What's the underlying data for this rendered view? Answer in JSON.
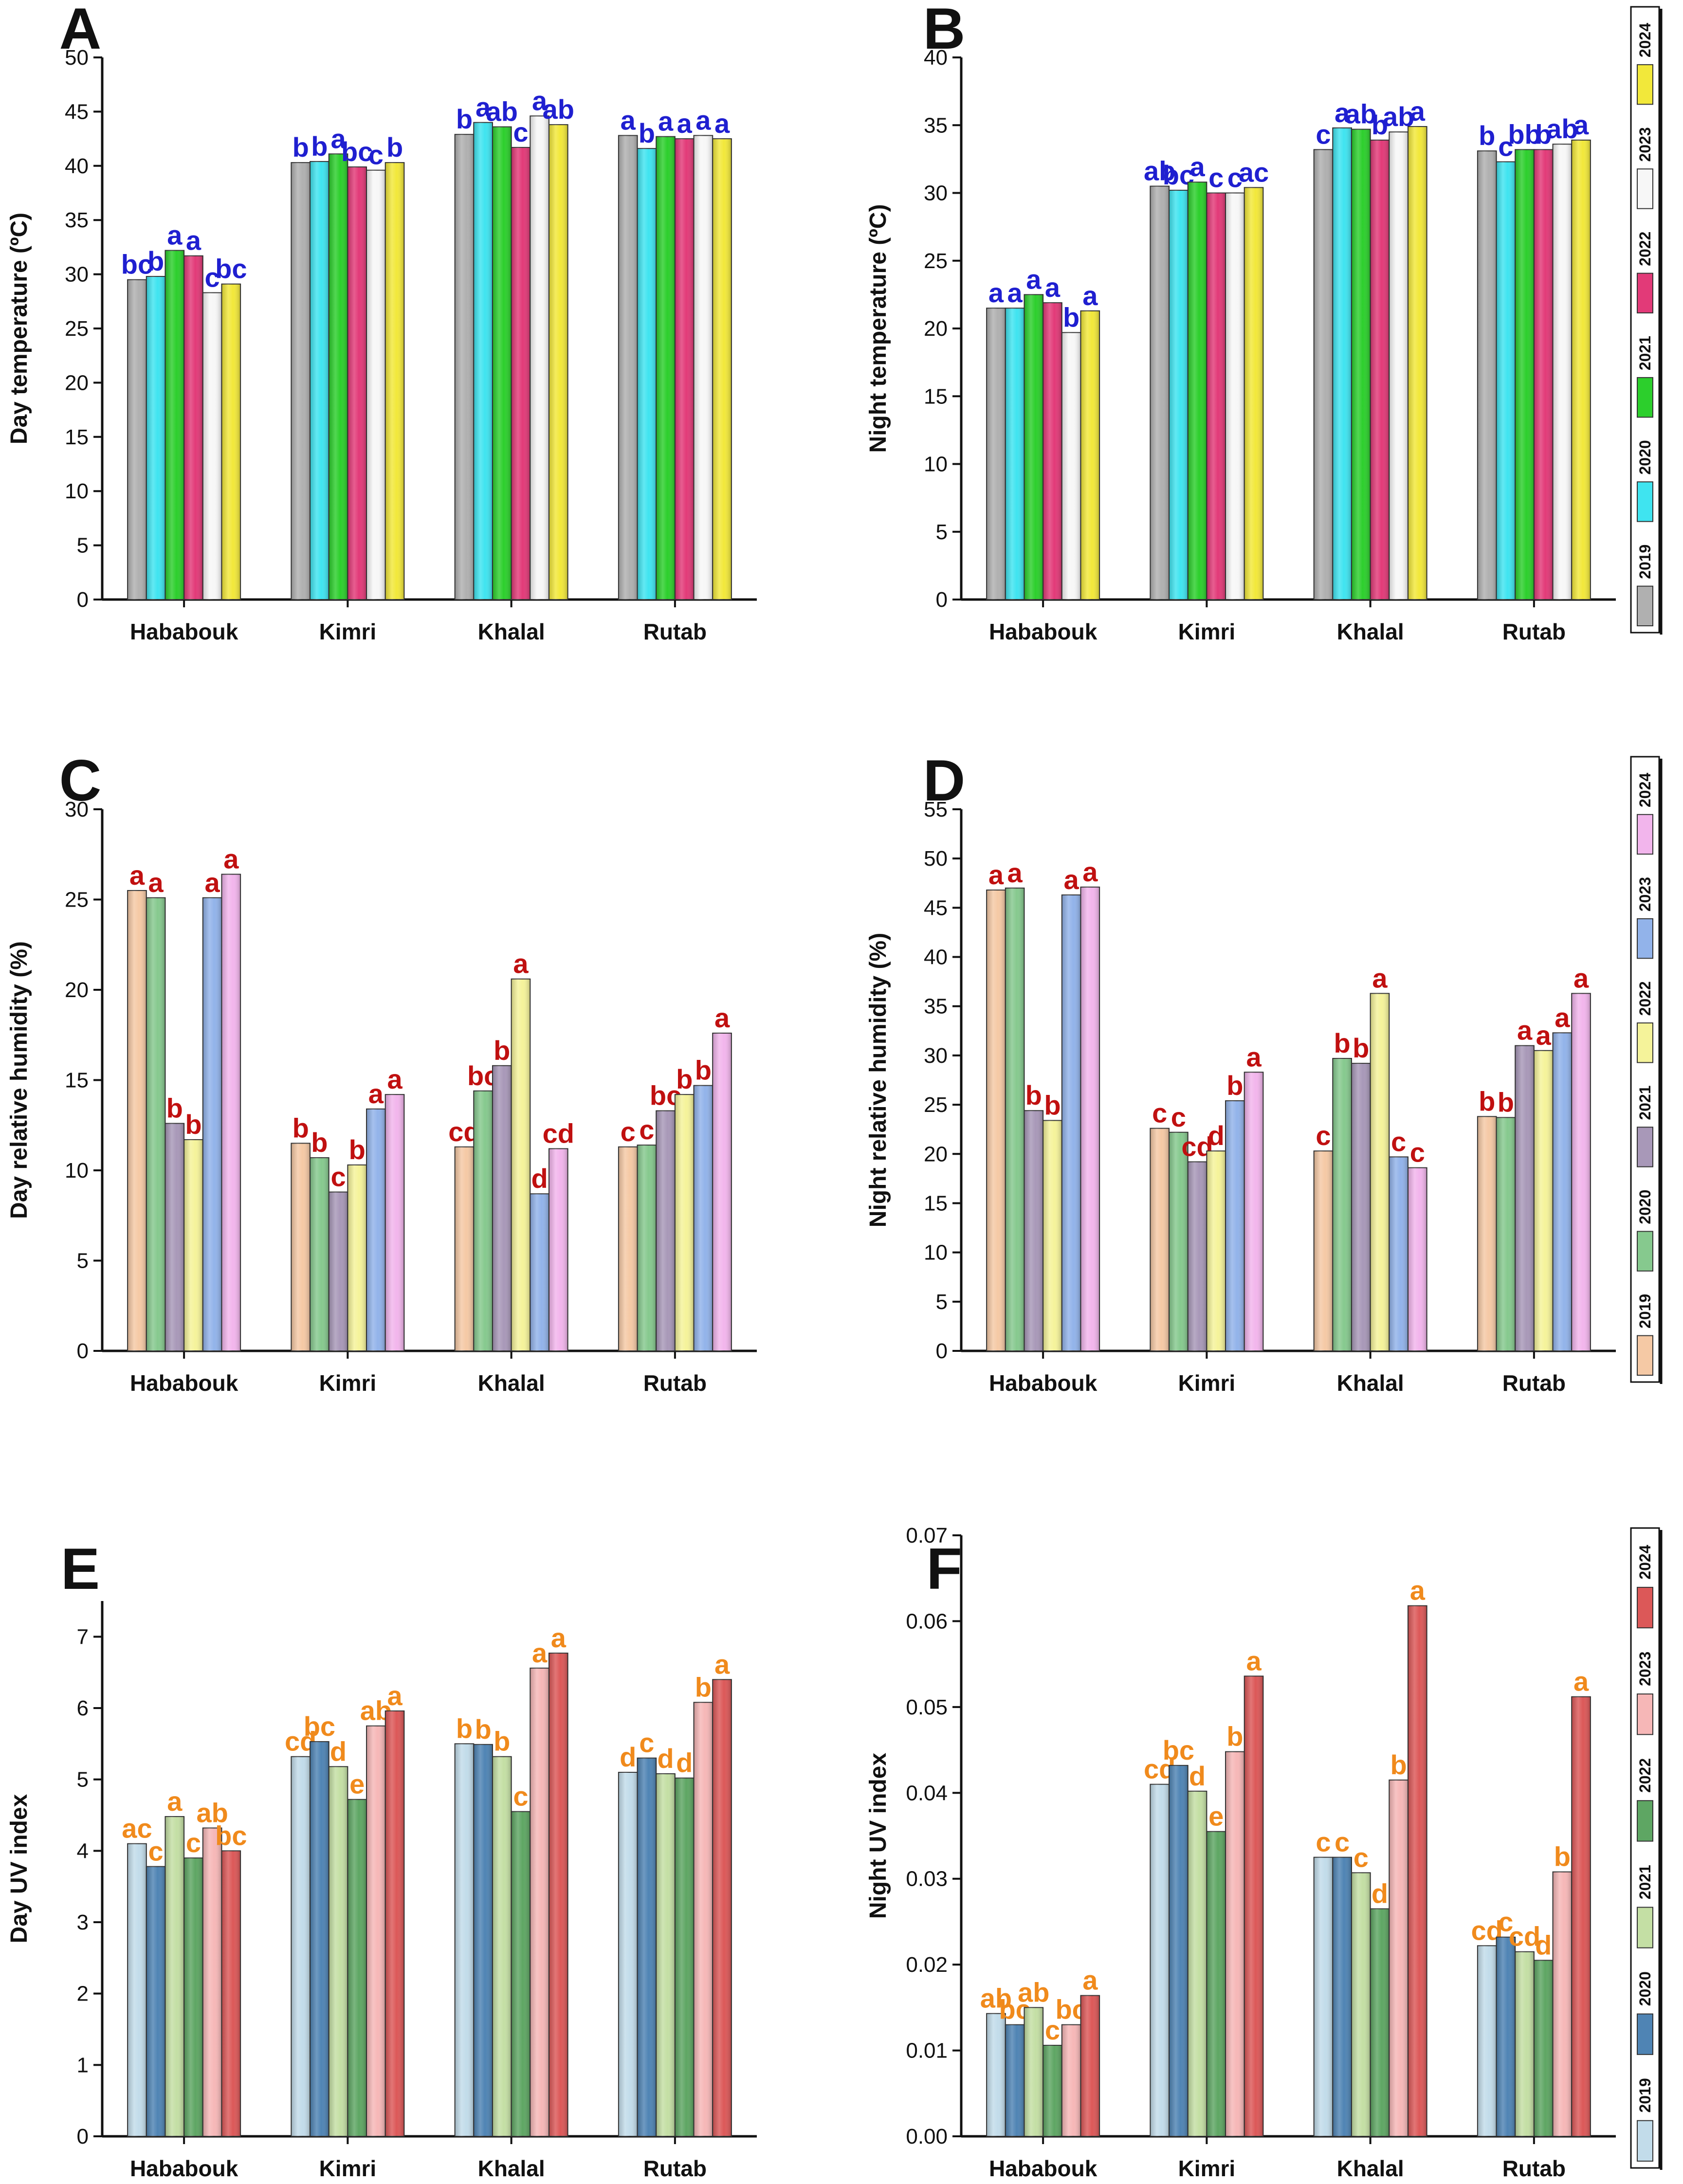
{
  "chart_data": [
    {
      "panel": "A",
      "type": "bar",
      "ylabel": "Day temperature (ºC)",
      "xlabel": "",
      "ylim": [
        0,
        50
      ],
      "yticks": [
        0,
        5,
        10,
        15,
        20,
        25,
        30,
        35,
        40,
        45,
        50
      ],
      "categories": [
        "Hababouk",
        "Kimri",
        "Khalal",
        "Rutab"
      ],
      "sig_color": "#1f1fd0",
      "series": [
        {
          "name": "2019",
          "color": "#b0b0b0",
          "values": [
            29.5,
            40.3,
            42.9,
            42.8
          ],
          "letters": [
            "bc",
            "b",
            "b",
            "a"
          ]
        },
        {
          "name": "2020",
          "color": "#3fe4f0",
          "values": [
            29.8,
            40.4,
            44.0,
            41.6
          ],
          "letters": [
            "b",
            "b",
            "a",
            "b"
          ]
        },
        {
          "name": "2021",
          "color": "#2ccf2c",
          "values": [
            32.2,
            41.1,
            43.6,
            42.7
          ],
          "letters": [
            "a",
            "a",
            "ab",
            "a"
          ]
        },
        {
          "name": "2022",
          "color": "#e23a78",
          "values": [
            31.7,
            39.9,
            41.7,
            42.5
          ],
          "letters": [
            "a",
            "bc",
            "c",
            "a"
          ]
        },
        {
          "name": "2023",
          "color": "#f7f7f7",
          "values": [
            28.3,
            39.6,
            44.6,
            42.8
          ],
          "letters": [
            "c",
            "c",
            "a",
            "a"
          ]
        },
        {
          "name": "2024",
          "color": "#f2e83a",
          "values": [
            29.1,
            40.3,
            43.8,
            42.5
          ],
          "letters": [
            "bc",
            "b",
            "ab",
            "a"
          ]
        }
      ]
    },
    {
      "panel": "B",
      "type": "bar",
      "ylabel": "Night temperature (ºC)",
      "xlabel": "",
      "ylim": [
        0,
        40
      ],
      "yticks": [
        0,
        5,
        10,
        15,
        20,
        25,
        30,
        35,
        40
      ],
      "categories": [
        "Hababouk",
        "Kimri",
        "Khalal",
        "Rutab"
      ],
      "sig_color": "#1f1fd0",
      "series": [
        {
          "name": "2019",
          "color": "#b0b0b0",
          "values": [
            21.5,
            30.5,
            33.2,
            33.1
          ],
          "letters": [
            "a",
            "ab",
            "c",
            "b"
          ]
        },
        {
          "name": "2020",
          "color": "#3fe4f0",
          "values": [
            21.5,
            30.2,
            34.8,
            32.3
          ],
          "letters": [
            "a",
            "bc",
            "a",
            "c"
          ]
        },
        {
          "name": "2021",
          "color": "#2ccf2c",
          "values": [
            22.5,
            30.8,
            34.7,
            33.2
          ],
          "letters": [
            "a",
            "a",
            "ab",
            "bb"
          ]
        },
        {
          "name": "2022",
          "color": "#e23a78",
          "values": [
            21.9,
            30.0,
            33.9,
            33.2
          ],
          "letters": [
            "a",
            "c",
            "b",
            "b"
          ]
        },
        {
          "name": "2023",
          "color": "#f7f7f7",
          "values": [
            19.7,
            30.0,
            34.5,
            33.6
          ],
          "letters": [
            "b",
            "c",
            "ab",
            "ab"
          ]
        },
        {
          "name": "2024",
          "color": "#f2e83a",
          "values": [
            21.3,
            30.4,
            34.9,
            33.9
          ],
          "letters": [
            "a",
            "ac",
            "a",
            "a"
          ]
        }
      ]
    },
    {
      "panel": "C",
      "type": "bar",
      "ylabel": "Day relative humidity (%)",
      "xlabel": "",
      "ylim": [
        0,
        30
      ],
      "yticks": [
        0,
        5,
        10,
        15,
        20,
        25,
        30
      ],
      "categories": [
        "Hababouk",
        "Kimri",
        "Khalal",
        "Rutab"
      ],
      "sig_color": "#c01010",
      "series": [
        {
          "name": "2019",
          "color": "#f5c9a5",
          "values": [
            25.5,
            11.5,
            11.3,
            11.3
          ],
          "letters": [
            "a",
            "b",
            "cd",
            "c"
          ]
        },
        {
          "name": "2020",
          "color": "#86c98e",
          "values": [
            25.1,
            10.7,
            14.4,
            11.4
          ],
          "letters": [
            "a",
            "b",
            "bc",
            "c"
          ]
        },
        {
          "name": "2021",
          "color": "#a898b8",
          "values": [
            12.6,
            8.8,
            15.8,
            13.3
          ],
          "letters": [
            "b",
            "c",
            "b",
            "bc"
          ]
        },
        {
          "name": "2022",
          "color": "#f5f39a",
          "values": [
            11.7,
            10.3,
            20.6,
            14.2
          ],
          "letters": [
            "b",
            "b",
            "a",
            "b"
          ]
        },
        {
          "name": "2023",
          "color": "#92b3ea",
          "values": [
            25.1,
            13.4,
            8.7,
            14.7
          ],
          "letters": [
            "a",
            "a",
            "d",
            "b"
          ]
        },
        {
          "name": "2024",
          "color": "#f2b5ec",
          "values": [
            26.4,
            14.2,
            11.2,
            17.6
          ],
          "letters": [
            "a",
            "a",
            "cd",
            "a"
          ]
        }
      ]
    },
    {
      "panel": "D",
      "type": "bar",
      "ylabel": "Night relative humidity (%)",
      "xlabel": "",
      "ylim": [
        0,
        55
      ],
      "yticks": [
        0,
        5,
        10,
        15,
        20,
        25,
        30,
        35,
        40,
        45,
        50,
        55
      ],
      "categories": [
        "Hababouk",
        "Kimri",
        "Khalal",
        "Rutab"
      ],
      "sig_color": "#c01010",
      "series": [
        {
          "name": "2019",
          "color": "#f5c9a5",
          "values": [
            46.8,
            22.6,
            20.3,
            23.8
          ],
          "letters": [
            "a",
            "c",
            "c",
            "b"
          ]
        },
        {
          "name": "2020",
          "color": "#86c98e",
          "values": [
            47.0,
            22.2,
            29.7,
            23.7
          ],
          "letters": [
            "a",
            "c",
            "b",
            "b"
          ]
        },
        {
          "name": "2021",
          "color": "#a898b8",
          "values": [
            24.4,
            19.2,
            29.2,
            31.0
          ],
          "letters": [
            "b",
            "cd",
            "b",
            "a"
          ]
        },
        {
          "name": "2022",
          "color": "#f5f39a",
          "values": [
            23.4,
            20.3,
            36.3,
            30.5
          ],
          "letters": [
            "b",
            "d",
            "a",
            "a"
          ]
        },
        {
          "name": "2023",
          "color": "#92b3ea",
          "values": [
            46.3,
            25.4,
            19.7,
            32.3
          ],
          "letters": [
            "a",
            "b",
            "c",
            "a"
          ]
        },
        {
          "name": "2024",
          "color": "#f2b5ec",
          "values": [
            47.1,
            28.3,
            18.6,
            36.3
          ],
          "letters": [
            "a",
            "a",
            "c",
            "a"
          ]
        }
      ]
    },
    {
      "panel": "E",
      "type": "bar",
      "ylabel": "Day UV index",
      "xlabel": "",
      "ylim": [
        0,
        7.5
      ],
      "yticks": [
        0,
        1,
        2,
        3,
        4,
        5,
        6,
        7
      ],
      "categories": [
        "Hababouk",
        "Kimri",
        "Khalal",
        "Rutab"
      ],
      "sig_color": "#f08a1c",
      "series": [
        {
          "name": "2019",
          "color": "#c2dcea",
          "values": [
            4.1,
            5.32,
            5.5,
            5.1
          ],
          "letters": [
            "ac",
            "cd",
            "b",
            "d"
          ]
        },
        {
          "name": "2020",
          "color": "#4f84b4",
          "values": [
            3.78,
            5.53,
            5.49,
            5.3
          ],
          "letters": [
            "c",
            "bc",
            "b",
            "c"
          ]
        },
        {
          "name": "2021",
          "color": "#c4dfa4",
          "values": [
            4.48,
            5.18,
            5.32,
            5.08
          ],
          "letters": [
            "a",
            "d",
            "b",
            "d"
          ]
        },
        {
          "name": "2022",
          "color": "#5ea663",
          "values": [
            3.9,
            4.72,
            4.55,
            5.02
          ],
          "letters": [
            "c",
            "e",
            "c",
            "d"
          ]
        },
        {
          "name": "2023",
          "color": "#f6b7b7",
          "values": [
            4.32,
            5.75,
            6.56,
            6.08
          ],
          "letters": [
            "ab",
            "ab",
            "a",
            "b"
          ]
        },
        {
          "name": "2024",
          "color": "#dc5858",
          "values": [
            4.0,
            5.96,
            6.77,
            6.4
          ],
          "letters": [
            "bc",
            "a",
            "a",
            "a"
          ]
        }
      ]
    },
    {
      "panel": "F",
      "type": "bar",
      "ylabel": "Night UV index",
      "xlabel": "",
      "ylim": [
        0,
        0.07
      ],
      "yticks": [
        "0.00",
        "0.01",
        "0.02",
        "0.03",
        "0.04",
        "0.05",
        "0.06",
        "0.07"
      ],
      "categories": [
        "Hababouk",
        "Kimri",
        "Khalal",
        "Rutab"
      ],
      "sig_color": "#f08a1c",
      "series": [
        {
          "name": "2019",
          "color": "#c2dcea",
          "values": [
            0.0143,
            0.041,
            0.0325,
            0.0222
          ],
          "letters": [
            "ab",
            "cd",
            "c",
            "cd"
          ]
        },
        {
          "name": "2020",
          "color": "#4f84b4",
          "values": [
            0.013,
            0.0432,
            0.0325,
            0.0232
          ],
          "letters": [
            "bc",
            "bc",
            "c",
            "c"
          ]
        },
        {
          "name": "2021",
          "color": "#c4dfa4",
          "values": [
            0.015,
            0.0402,
            0.0307,
            0.0215
          ],
          "letters": [
            "ab",
            "d",
            "c",
            "cd"
          ]
        },
        {
          "name": "2022",
          "color": "#5ea663",
          "values": [
            0.0106,
            0.0355,
            0.0265,
            0.0205
          ],
          "letters": [
            "c",
            "e",
            "d",
            "d"
          ]
        },
        {
          "name": "2023",
          "color": "#f6b7b7",
          "values": [
            0.013,
            0.0448,
            0.0415,
            0.0308
          ],
          "letters": [
            "bc",
            "b",
            "b",
            "b"
          ]
        },
        {
          "name": "2024",
          "color": "#dc5858",
          "values": [
            0.0164,
            0.0536,
            0.0618,
            0.0512
          ],
          "letters": [
            "a",
            "a",
            "a",
            "a"
          ]
        }
      ]
    }
  ]
}
